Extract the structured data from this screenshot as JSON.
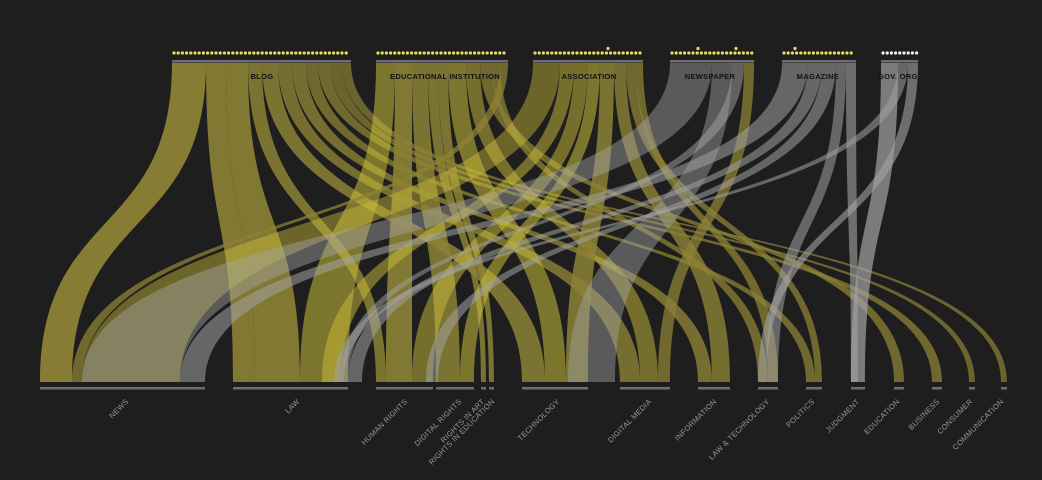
{
  "colors": {
    "background": "#1e1e1e",
    "olive": "#8c8235",
    "yellow": "#cbbd3a",
    "gray": "#a3a3a3",
    "bar": "#6e6e6e",
    "dot_yellow": "#e8de5a",
    "dot_white": "#f1f1f1"
  },
  "sources": [
    {
      "id": "blog",
      "label": "BLOG"
    },
    {
      "id": "edu",
      "label": "EDUCATIONAL INSTITUTION"
    },
    {
      "id": "assoc",
      "label": "ASSOCIATION"
    },
    {
      "id": "news",
      "label": "NEWSPAPER"
    },
    {
      "id": "mag",
      "label": "MAGAZINE"
    },
    {
      "id": "gov",
      "label": "GOV. ORG."
    }
  ],
  "targets": [
    {
      "id": "news",
      "label": "NEWS"
    },
    {
      "id": "law",
      "label": "LAW"
    },
    {
      "id": "hr",
      "label": "HUMAN RIGHTS"
    },
    {
      "id": "dr",
      "label": "DIGITAL RIGHTS"
    },
    {
      "id": "ria",
      "label": "RIGHTS IN ART"
    },
    {
      "id": "rie",
      "label": "RIGHTS IN EDUCATION"
    },
    {
      "id": "tech",
      "label": "TECHNOLOGY"
    },
    {
      "id": "dm",
      "label": "DIGITAL MEDIA"
    },
    {
      "id": "info",
      "label": "INFORMATION"
    },
    {
      "id": "lt",
      "label": "LAW & TECHNOLOGY"
    },
    {
      "id": "pol",
      "label": "POLITICS"
    },
    {
      "id": "judg",
      "label": "JUDGMENT"
    },
    {
      "id": "edu",
      "label": "EDUCATION"
    },
    {
      "id": "bus",
      "label": "BUSINESS"
    },
    {
      "id": "cons",
      "label": "CONSUMER"
    },
    {
      "id": "comm",
      "label": "COMMUNICATION"
    }
  ]
}
